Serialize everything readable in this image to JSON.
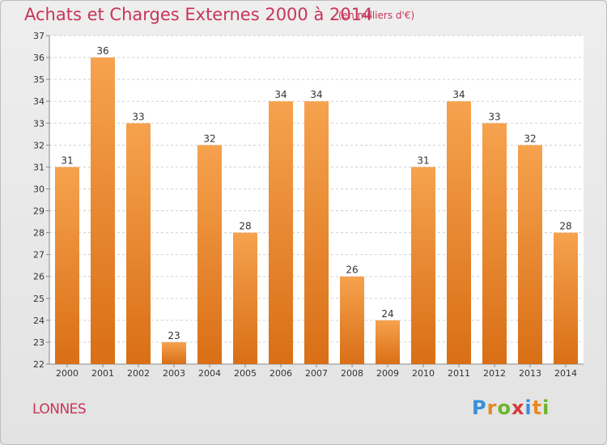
{
  "header": {
    "title": "Achats et Charges Externes 2000 à 2014",
    "subtitle": "(en milliers d'€)"
  },
  "footer": {
    "location": "LONNES",
    "logo_text": "Proxiti",
    "logo_letters": [
      {
        "ch": "P",
        "color": "#3a8fd8"
      },
      {
        "ch": "r",
        "color": "#e98a1f"
      },
      {
        "ch": "o",
        "color": "#6cb52d"
      },
      {
        "ch": "x",
        "color": "#d63b3b"
      },
      {
        "ch": "i",
        "color": "#3a8fd8"
      },
      {
        "ch": "t",
        "color": "#e98a1f"
      },
      {
        "ch": "i",
        "color": "#6cb52d"
      }
    ]
  },
  "colors": {
    "title": "#c8345a",
    "bar_top": "#f6a24e",
    "bar_bottom": "#d96f16",
    "plot_bg": "#ffffff",
    "grid": "#d0d0d0"
  },
  "chart_data": {
    "type": "bar",
    "title": "Achats et Charges Externes 2000 à 2014",
    "subtitle": "(en milliers d'€)",
    "xlabel": "",
    "ylabel": "",
    "categories": [
      "2000",
      "2001",
      "2002",
      "2003",
      "2004",
      "2005",
      "2006",
      "2007",
      "2008",
      "2009",
      "2010",
      "2011",
      "2012",
      "2013",
      "2014"
    ],
    "values": [
      31,
      36,
      33,
      23,
      32,
      28,
      34,
      34,
      26,
      24,
      31,
      34,
      33,
      32,
      28
    ],
    "ylim": [
      22,
      37
    ],
    "yticks": [
      22,
      23,
      24,
      25,
      26,
      27,
      28,
      29,
      30,
      31,
      32,
      33,
      34,
      35,
      36,
      37
    ],
    "grid": "horizontal",
    "legend": "none",
    "data_labels": true
  }
}
